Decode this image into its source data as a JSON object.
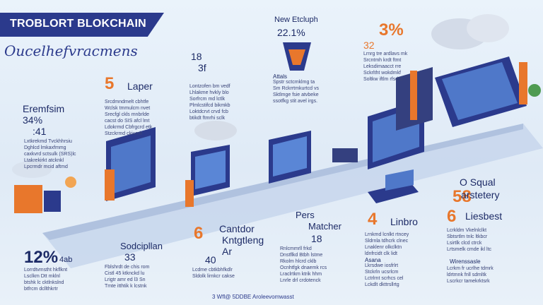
{
  "header": {
    "title": "TROBLORT BLOKCHAIN",
    "subtitle": "Oucelhefvracmens"
  },
  "blocks": {
    "b1": {
      "title": "Eremfsim",
      "stat1": "34%",
      "stat2": ":41",
      "text": [
        "Lxtkrekmd Tvckhhrsiu",
        "Dghlcd lmkaxfmmg",
        "caxkvrd sctsulk (SRS)lc",
        "Ltakrekirkt atcknkl",
        "Lpcrmdr mcid aftmd"
      ]
    },
    "b2": {
      "number": "5",
      "label": "Laper",
      "text": [
        "Srcdmndmelt cbhtfe",
        "Wclsk tmmulcm nvet",
        "Srecfgl ckls mnbrlde",
        "cacst do SIS afcl lmt",
        "Ldokrmd Cbfrgcrd etk",
        "Stzckrmd ckiumlt"
      ]
    },
    "b3": {
      "number": "18",
      "stat": "3f",
      "text": [
        "Lontzofen bm vedf",
        "Lhlakme  hvkly blo",
        "Sorfrcm md lctlk",
        "Plmlcstifcd bikmkb",
        "Loktdcrvt crvd fcb",
        "btikdt ftmrhi sclk"
      ]
    },
    "b4": {
      "title": "New Etcluph",
      "stat": "22.1%",
      "label": "Attals",
      "text": [
        "Spstr sctcmklmg ta",
        "Sm Rckrrtmkurtcd vs",
        "Sktlmge fsie atvbeke",
        "ssotfkg stit avel irgs."
      ]
    },
    "b5": {
      "stat": "3%",
      "sub": "32",
      "text": [
        "Lrnrg tre ardlavs mk",
        "Srcntmh krdt ftmt",
        "Leksdimaacct rre",
        "Sckrltht wokdmkf",
        "Soltkw iftlm rfsdrd"
      ]
    },
    "b6": {
      "title": "Sodcipllan",
      "stat": "33",
      "text": [
        "Fblshrdt de chis rom",
        "Cistl 45 ktknckd lu",
        "Lrigtr amr ed l3 Sn",
        "Tmte itthtik k lcstnk"
      ]
    },
    "b7": {
      "number": "6",
      "title": "Cantdor",
      "title2": "Kntgtleng",
      "title3": "Ar",
      "stat": "40",
      "text": [
        "Lcdme cbtkbhfkdlr",
        "Sldolk lirnkcr cakse"
      ]
    },
    "b8": {
      "title": "Pers",
      "title2": "Matcher",
      "stat": "18",
      "text": [
        "Rnlcmmrll frkd",
        "Dnstflkd Btbh lstme",
        "Rkolm hlcrd cklb",
        "Ocnhtfgk dnaemk rcs",
        "Lraclrtkm ktrik hhm",
        "Lnrle drl crdotenck"
      ]
    },
    "b9": {
      "stat": "12%",
      "stat2": "4ab",
      "text": [
        "Lorrdtvmstht hkflknt",
        "Lsclkm Dtt mklnl",
        "btshk lc cktlnkslnd",
        "btfrcm dcllthkrtr"
      ]
    },
    "b10": {
      "stat": "4",
      "title": "Linbro",
      "text": [
        "Lrnkmd lcnlkt rtncey",
        "Sldrnla tdhcrk clnec",
        "Lnaklenr olkclktn",
        "ldnfrcidt clk lidt"
      ],
      "label": "Asana",
      "text2": [
        "Lkrsdwe iosfrlrt",
        "Stckrln ucsrlcm",
        "Lctrlrnt scrhcs cel",
        "Lckdlt dkttrsllrtg"
      ]
    },
    "b11": {
      "title": "O Squal",
      "stat": "58",
      "sub": "arstetery",
      "number": "6",
      "label": "Liesbest",
      "text": [
        "Lcrkldm Vkelnlclkt",
        "Sbtsrtlm tnlc ltkbcr",
        "Lsirtlk clcd ctrck",
        "Lrtsmelk cmde ikl ltc"
      ],
      "label2": "Wirenssasle",
      "text2": [
        "Lcrkm fr ucrlhe tdmrk",
        "ldrtmnk fnll sdmltk",
        "Lscrkcr tamekrktsrk"
      ]
    }
  },
  "footer": {
    "text": "3 Wfl@ 5DDBE Aroleevomwasst"
  },
  "colors": {
    "navy": "#2b3a8c",
    "orange": "#e8772c",
    "background": "#e6eff8"
  }
}
